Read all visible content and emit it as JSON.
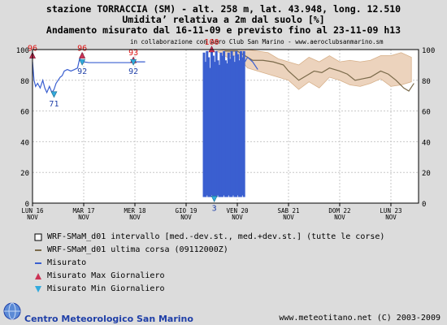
{
  "header": {
    "line1": "stazione TORRACCIA (SM) - alt. 258 m, lat. 43.948, long. 12.510",
    "line2": "Umidita’ relativa a 2m dal suolo [%]",
    "line3": "Andamento misurato dal 16-11-09 e previsto fino al 23-11-09 h13",
    "collab": "in collaborazione con Aero Club San Marino - www.aeroclubsanmarino.sm"
  },
  "legend": [
    {
      "symbol": "box",
      "text": "WRF-SMaM_d01 intervallo [med.-dev.st., med.+dev.st.] (tutte le corse)"
    },
    {
      "symbol": "olive-line",
      "text": "WRF-SMaM_d01 ultima corsa (09112000Z)"
    },
    {
      "symbol": "blue-line",
      "text": "Misurato"
    },
    {
      "symbol": "red-triangle",
      "text": "Misurato Max Giornaliero"
    },
    {
      "symbol": "cyan-triangle",
      "text": "Misurato Min Giornaliero"
    }
  ],
  "footer": {
    "left": "Centro Meteorologico San Marino",
    "right": "www.meteotitano.net (C) 2003-2009"
  },
  "colors": {
    "plot_bg": "#ffffff",
    "grid": "#c8c8c8",
    "band": "#ecd3bd",
    "band_edge": "#d7b089",
    "forecast": "#7a6a4a",
    "measured": "#3a5fd0",
    "max_marker": "#cc3355",
    "min_marker": "#33aadd",
    "max_label": "#dd1111",
    "min_label": "#1f3fa8"
  },
  "chart_data": {
    "type": "line",
    "title": "Umidita’ relativa a 2m dal suolo [%]",
    "ylim": [
      0,
      100
    ],
    "yticks": [
      0,
      20,
      40,
      60,
      80,
      100
    ],
    "xlim": [
      0,
      7.54
    ],
    "xticks": [
      {
        "x": 0,
        "day": "LUN 16",
        "month": "NOV"
      },
      {
        "x": 1,
        "day": "MAR 17",
        "month": "NOV"
      },
      {
        "x": 2,
        "day": "MER 18",
        "month": "NOV"
      },
      {
        "x": 3,
        "day": "GIO 19",
        "month": "NOV"
      },
      {
        "x": 4,
        "day": "VEN 20",
        "month": "NOV"
      },
      {
        "x": 5,
        "day": "SAB 21",
        "month": "NOV"
      },
      {
        "x": 6,
        "day": "DOM 22",
        "month": "NOV"
      },
      {
        "x": 7,
        "day": "LUN 23",
        "month": "NOV"
      }
    ],
    "band_range": [
      [
        3.6,
        99,
        99
      ],
      [
        3.8,
        95,
        100
      ],
      [
        4.0,
        96,
        100
      ],
      [
        4.2,
        88,
        100
      ],
      [
        4.4,
        86,
        99
      ],
      [
        4.6,
        84,
        98
      ],
      [
        4.8,
        82,
        94
      ],
      [
        5.0,
        80,
        92
      ],
      [
        5.2,
        74,
        90
      ],
      [
        5.4,
        79,
        95
      ],
      [
        5.6,
        75,
        92
      ],
      [
        5.8,
        82,
        96
      ],
      [
        6.0,
        80,
        92
      ],
      [
        6.2,
        77,
        93
      ],
      [
        6.4,
        76,
        92
      ],
      [
        6.6,
        78,
        93
      ],
      [
        6.8,
        81,
        96
      ],
      [
        7.0,
        76,
        96
      ],
      [
        7.2,
        77,
        98
      ],
      [
        7.4,
        79,
        95
      ]
    ],
    "forecast": [
      [
        3.75,
        99
      ],
      [
        4.0,
        99
      ],
      [
        4.15,
        96
      ],
      [
        4.3,
        93
      ],
      [
        4.5,
        93
      ],
      [
        4.7,
        92
      ],
      [
        4.9,
        90
      ],
      [
        5.0,
        86
      ],
      [
        5.2,
        80
      ],
      [
        5.35,
        83
      ],
      [
        5.5,
        86
      ],
      [
        5.65,
        85
      ],
      [
        5.8,
        88
      ],
      [
        6.0,
        86
      ],
      [
        6.15,
        84
      ],
      [
        6.3,
        80
      ],
      [
        6.45,
        81
      ],
      [
        6.6,
        82
      ],
      [
        6.8,
        86
      ],
      [
        6.95,
        84
      ],
      [
        7.1,
        80
      ],
      [
        7.25,
        75
      ],
      [
        7.35,
        73
      ],
      [
        7.45,
        78
      ]
    ],
    "measured": [
      [
        0.0,
        92
      ],
      [
        0.03,
        80
      ],
      [
        0.06,
        76
      ],
      [
        0.1,
        78
      ],
      [
        0.15,
        75
      ],
      [
        0.2,
        80
      ],
      [
        0.24,
        75
      ],
      [
        0.28,
        72
      ],
      [
        0.33,
        76
      ],
      [
        0.38,
        72
      ],
      [
        0.42,
        74
      ],
      [
        0.46,
        78
      ],
      [
        0.5,
        80
      ],
      [
        0.54,
        82
      ],
      [
        0.58,
        83
      ],
      [
        0.62,
        86
      ],
      [
        0.68,
        87
      ],
      [
        0.75,
        86
      ],
      [
        0.82,
        87
      ],
      [
        0.88,
        88
      ],
      [
        0.92,
        94
      ],
      [
        0.96,
        93
      ],
      [
        1.0,
        92
      ],
      [
        1.1,
        91.5
      ],
      [
        1.3,
        91.5
      ],
      [
        1.5,
        91.5
      ],
      [
        1.7,
        91.5
      ],
      [
        1.9,
        91.5
      ],
      [
        1.97,
        92
      ],
      [
        2.1,
        92
      ],
      [
        2.2,
        92
      ]
    ],
    "measured_burst": {
      "x_start": 3.35,
      "x_end": 4.15,
      "bars": [
        [
          3.35,
          4,
          98
        ],
        [
          3.38,
          4,
          92
        ],
        [
          3.41,
          5,
          99
        ],
        [
          3.44,
          4,
          95
        ],
        [
          3.47,
          4,
          88
        ],
        [
          3.5,
          5,
          99
        ],
        [
          3.53,
          4,
          96
        ],
        [
          3.56,
          4,
          92
        ],
        [
          3.59,
          4,
          99
        ],
        [
          3.62,
          5,
          93
        ],
        [
          3.65,
          4,
          90
        ],
        [
          3.68,
          4,
          98
        ],
        [
          3.71,
          4,
          96
        ],
        [
          3.74,
          5,
          99
        ],
        [
          3.77,
          4,
          93
        ],
        [
          3.8,
          4,
          91
        ],
        [
          3.83,
          5,
          98
        ],
        [
          3.86,
          4,
          94
        ],
        [
          3.89,
          4,
          99
        ],
        [
          3.92,
          5,
          96
        ],
        [
          3.95,
          4,
          92
        ],
        [
          3.98,
          4,
          99
        ],
        [
          4.01,
          5,
          97
        ],
        [
          4.04,
          4,
          93
        ],
        [
          4.07,
          4,
          99
        ],
        [
          4.1,
          5,
          95
        ],
        [
          4.13,
          4,
          99
        ]
      ]
    },
    "measured_tail": [
      [
        4.15,
        92
      ],
      [
        4.2,
        95
      ],
      [
        4.3,
        92
      ],
      [
        4.4,
        87
      ]
    ],
    "max_markers": [
      {
        "x": 0.0,
        "y": 96,
        "label": "96"
      },
      {
        "x": 0.97,
        "y": 96,
        "label": "96"
      },
      {
        "x": 1.97,
        "y": 93,
        "label": "93"
      },
      {
        "x": 3.5,
        "y": 100,
        "label": "100"
      }
    ],
    "min_markers": [
      {
        "x": 0.42,
        "y": 71,
        "label": "71"
      },
      {
        "x": 0.97,
        "y": 92,
        "label": "92"
      },
      {
        "x": 1.97,
        "y": 92,
        "label": "92"
      },
      {
        "x": 3.55,
        "y": 3,
        "label": "3"
      }
    ]
  }
}
